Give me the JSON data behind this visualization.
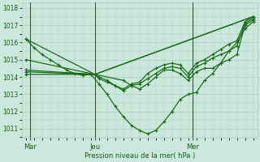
{
  "bg_color": "#cce8dc",
  "grid_color": "#aaccc0",
  "line_color": "#1a6b1a",
  "marker_color": "#1a6b1a",
  "xlabel": "Pression niveau de la mer( hPa )",
  "xlabel_color": "#1a5a1a",
  "tick_color": "#1a5a1a",
  "ylim": [
    1010.5,
    1018.3
  ],
  "yticks": [
    1011,
    1012,
    1013,
    1014,
    1015,
    1016,
    1017,
    1018
  ],
  "xtick_labels": [
    "Mar",
    "Jeu",
    "Mer"
  ],
  "vline_x": [
    0.5,
    8.5,
    20.5
  ],
  "xlim": [
    0,
    28
  ],
  "xtick_positions": [
    0.5,
    8.5,
    20.5
  ],
  "series": [
    {
      "x": [
        0,
        1,
        2,
        3,
        4,
        5,
        6,
        7,
        8,
        9,
        10,
        11,
        12,
        13,
        14,
        15,
        16,
        17,
        18,
        19,
        20,
        21,
        22,
        23,
        24,
        25,
        26,
        27,
        28
      ],
      "y": [
        1016.2,
        1015.7,
        1015.3,
        1015.0,
        1014.7,
        1014.4,
        1014.2,
        1014.1,
        1014.15,
        1013.6,
        1013.0,
        1012.3,
        1011.7,
        1011.2,
        1010.9,
        1010.7,
        1010.9,
        1011.4,
        1012.0,
        1012.7,
        1013.0,
        1013.1,
        1013.8,
        1014.2,
        1014.8,
        1015.5,
        1016.0,
        1016.8,
        1017.2
      ],
      "lw": 0.9
    },
    {
      "x": [
        0,
        8.5,
        28
      ],
      "y": [
        1016.2,
        1014.15,
        1017.5
      ],
      "lw": 0.9
    },
    {
      "x": [
        0,
        8.5,
        28
      ],
      "y": [
        1015.0,
        1014.15,
        1017.5
      ],
      "lw": 0.9
    },
    {
      "x": [
        0,
        8.5,
        12,
        13,
        14,
        15,
        16,
        17,
        18,
        19,
        20,
        21,
        22,
        23,
        24,
        25,
        26,
        27,
        28
      ],
      "y": [
        1014.4,
        1014.15,
        1013.8,
        1013.5,
        1013.3,
        1013.6,
        1014.0,
        1014.4,
        1014.4,
        1014.2,
        1013.8,
        1014.3,
        1014.5,
        1014.5,
        1014.8,
        1015.0,
        1015.3,
        1017.0,
        1017.3
      ],
      "lw": 0.9
    },
    {
      "x": [
        0,
        8.5,
        9,
        10,
        11,
        12,
        13,
        14,
        15,
        16,
        17,
        18,
        19,
        20,
        21,
        22,
        23,
        24,
        25,
        26,
        27,
        28
      ],
      "y": [
        1014.3,
        1014.15,
        1013.9,
        1013.7,
        1013.5,
        1013.2,
        1013.5,
        1013.6,
        1013.9,
        1014.2,
        1014.5,
        1014.6,
        1014.5,
        1014.0,
        1014.6,
        1014.8,
        1015.1,
        1015.3,
        1015.5,
        1015.8,
        1017.1,
        1017.4
      ],
      "lw": 0.9
    },
    {
      "x": [
        0,
        8.5,
        9,
        10,
        11,
        12,
        13,
        14,
        15,
        16,
        17,
        18,
        19,
        20,
        21,
        22,
        23,
        24,
        25,
        26,
        27,
        28
      ],
      "y": [
        1014.15,
        1014.15,
        1014.0,
        1013.8,
        1013.5,
        1013.3,
        1013.6,
        1013.7,
        1014.2,
        1014.5,
        1014.7,
        1014.8,
        1014.7,
        1014.2,
        1014.8,
        1015.0,
        1015.3,
        1015.6,
        1015.9,
        1016.1,
        1017.2,
        1017.5
      ],
      "lw": 0.9
    }
  ],
  "total_x": 28
}
